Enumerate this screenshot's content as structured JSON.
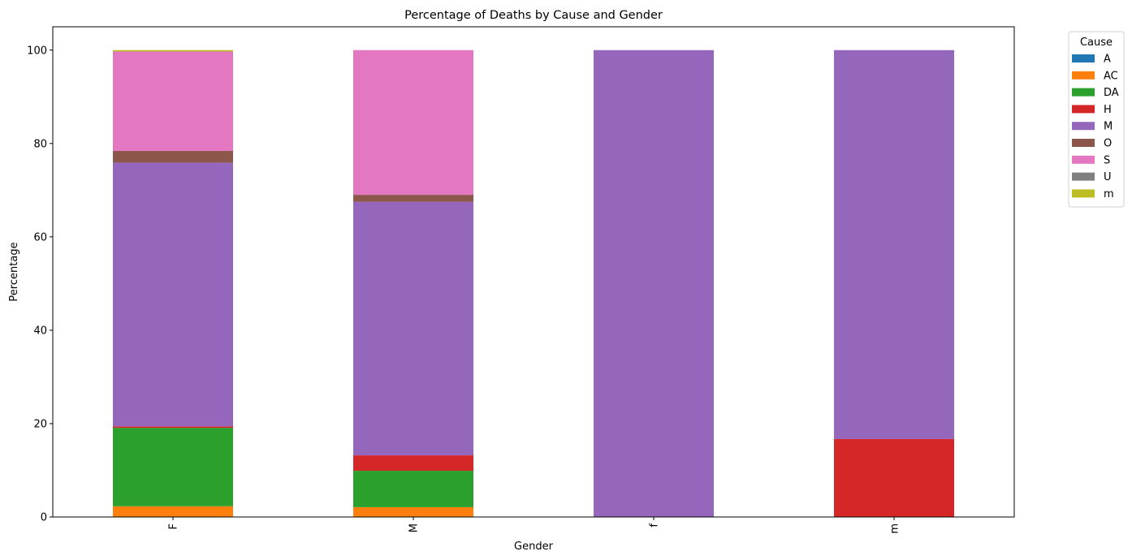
{
  "chart_data": {
    "type": "bar",
    "stacked": true,
    "title": "Percentage of Deaths by Cause and Gender",
    "xlabel": "Gender",
    "ylabel": "Percentage",
    "ylim": [
      0,
      105
    ],
    "yticks": [
      0,
      20,
      40,
      60,
      80,
      100
    ],
    "categories": [
      "F",
      "M",
      "f",
      "m"
    ],
    "legend": {
      "title": "Cause",
      "placement": "outside-top-right"
    },
    "series": [
      {
        "name": "A",
        "color": "#1f77b4",
        "values": [
          0,
          0,
          0,
          0
        ]
      },
      {
        "name": "AC",
        "color": "#ff7f0e",
        "values": [
          2.3,
          2.1,
          0,
          0
        ]
      },
      {
        "name": "DA",
        "color": "#2ca02c",
        "values": [
          16.8,
          7.8,
          0,
          0
        ]
      },
      {
        "name": "H",
        "color": "#d62728",
        "values": [
          0.3,
          3.3,
          0,
          16.7
        ]
      },
      {
        "name": "M",
        "color": "#9467bd",
        "values": [
          56.5,
          54.3,
          100,
          83.3
        ]
      },
      {
        "name": "O",
        "color": "#8c564b",
        "values": [
          2.5,
          1.5,
          0,
          0
        ]
      },
      {
        "name": "S",
        "color": "#e377c2",
        "values": [
          21.3,
          31.0,
          0,
          0
        ]
      },
      {
        "name": "U",
        "color": "#7f7f7f",
        "values": [
          0,
          0,
          0,
          0
        ]
      },
      {
        "name": "m",
        "color": "#bcbd22",
        "values": [
          0.3,
          0,
          0,
          0
        ]
      }
    ]
  }
}
